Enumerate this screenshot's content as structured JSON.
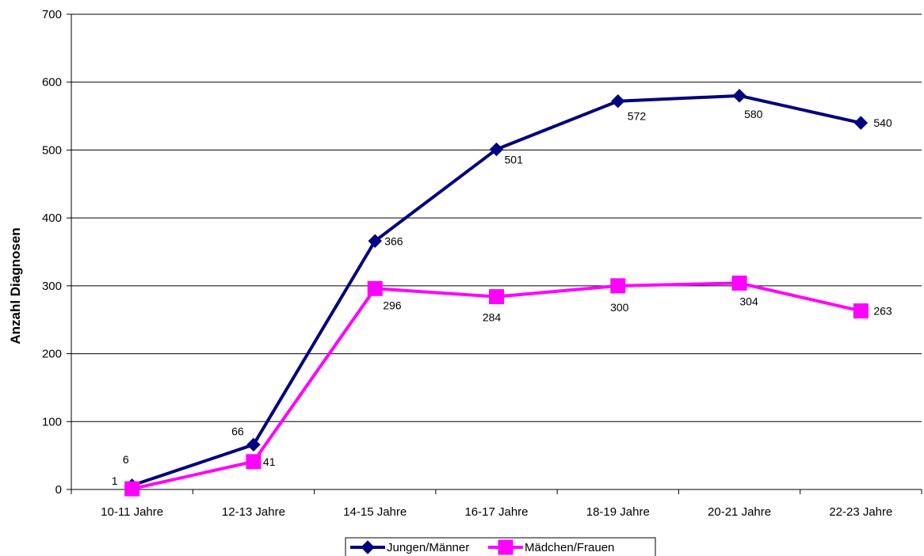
{
  "chart_data": {
    "type": "line",
    "title": "",
    "xlabel": "",
    "ylabel": "Anzahl Diagnosen",
    "categories": [
      "10-11 Jahre",
      "12-13 Jahre",
      "14-15 Jahre",
      "16-17 Jahre",
      "18-19 Jahre",
      "20-21 Jahre",
      "22-23 Jahre"
    ],
    "ylim": [
      0,
      700
    ],
    "yticks": [
      "0",
      "100",
      "200",
      "300",
      "400",
      "500",
      "600",
      "700"
    ],
    "grid": true,
    "legend_position": "bottom",
    "series": [
      {
        "name": "Jungen/Männer",
        "values": [
          6,
          66,
          366,
          501,
          572,
          580,
          540
        ],
        "labels": [
          "6",
          "66",
          "366",
          "501",
          "572",
          "580",
          "540"
        ],
        "color": "#000080",
        "marker": "diamond"
      },
      {
        "name": "Mädchen/Frauen",
        "values": [
          1,
          41,
          296,
          284,
          300,
          304,
          263
        ],
        "labels": [
          "1",
          "41",
          "296",
          "284",
          "300",
          "304",
          "263"
        ],
        "color": "#ff00ff",
        "marker": "square"
      }
    ]
  }
}
